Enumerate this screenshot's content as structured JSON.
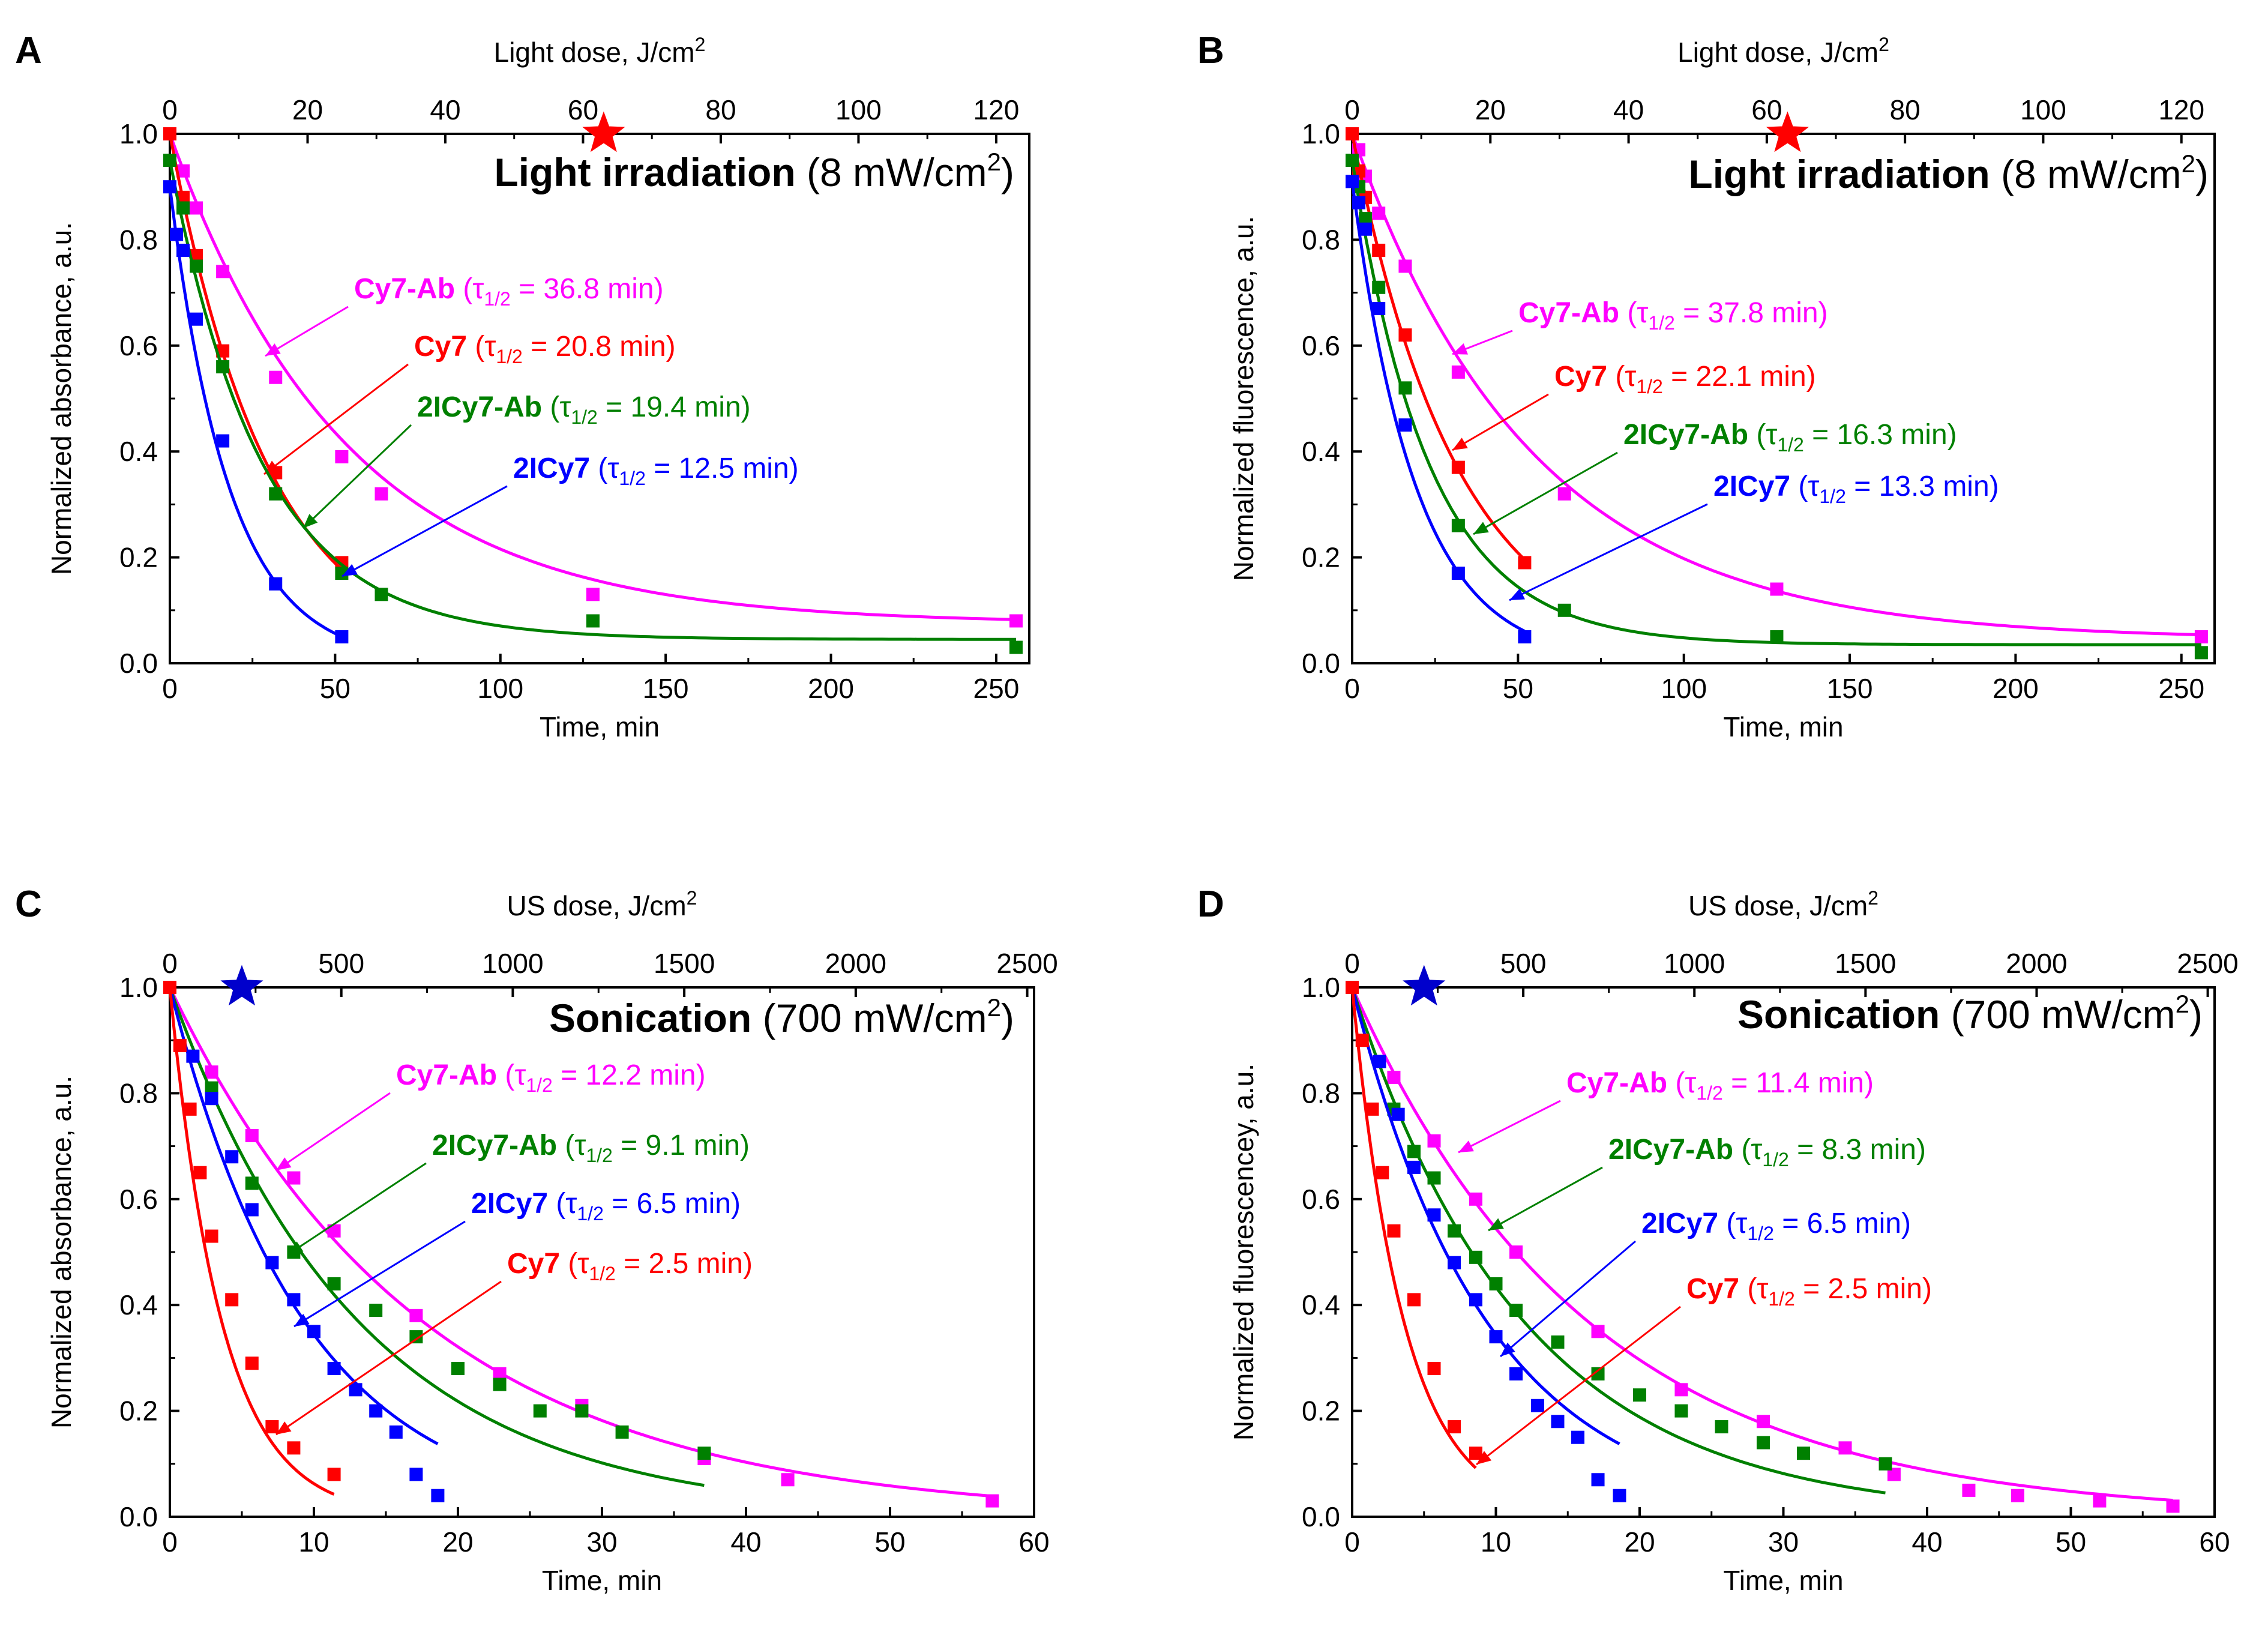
{
  "figure": "Four-panel photobleaching / sonication degradation kinetics",
  "colors": {
    "Cy7-Ab": "#ff00ff",
    "Cy7": "#ff0000",
    "2ICy7-Ab": "#008000",
    "2ICy7": "#0000ff",
    "axis": "#000000"
  },
  "chart_data": [
    {
      "type": "scatter",
      "panel_label": "A",
      "xlabel": "Time, min",
      "ylabel": "Normalized absorbance, a.u.",
      "top_axis_label_main": "Light dose, J/cm",
      "top_axis_label_sup": "2",
      "title_bold": "Light irradiation",
      "title_rest": " (8 mW/cm",
      "title_sup": "2",
      "title_close": ")",
      "xlim": [
        0,
        260
      ],
      "ylim": [
        0,
        1.0
      ],
      "top_xlim": [
        0,
        124.8
      ],
      "xticks": [
        0,
        50,
        100,
        150,
        200,
        250
      ],
      "xtick_labels": [
        "0",
        "50",
        "100",
        "150",
        "200",
        "250"
      ],
      "yticks": [
        0,
        0.2,
        0.4,
        0.6,
        0.8,
        1.0
      ],
      "ytick_labels": [
        "0.0",
        "0.2",
        "0.4",
        "0.6",
        "0.8",
        "1.0"
      ],
      "top_ticks": [
        0,
        20,
        40,
        60,
        80,
        100,
        120
      ],
      "top_tick_labels": [
        "0",
        "20",
        "40",
        "60",
        "80",
        "100",
        "120"
      ],
      "star": {
        "x_top": 63,
        "color": "#ff0000"
      },
      "series": [
        {
          "name": "Cy7-Ab",
          "color": "#ff00ff",
          "tau_text": " = 36.8 min)",
          "x": [
            0,
            4,
            8,
            16,
            32,
            52,
            64,
            128,
            256
          ],
          "y": [
            1.0,
            0.93,
            0.86,
            0.74,
            0.54,
            0.39,
            0.32,
            0.13,
            0.08
          ],
          "fit": {
            "tau": 36.8,
            "plateau": 0.075,
            "tmax": 256
          }
        },
        {
          "name": "Cy7",
          "color": "#ff0000",
          "tau_text": " = 20.8 min)",
          "x": [
            0,
            4,
            8,
            16,
            32,
            52
          ],
          "y": [
            1.0,
            0.88,
            0.77,
            0.59,
            0.36,
            0.19
          ],
          "fit": {
            "tau": 20.8,
            "plateau": 0.0,
            "tmax": 52
          }
        },
        {
          "name": "2ICy7-Ab",
          "color": "#008000",
          "tau_text": " = 19.4 min)",
          "x": [
            0,
            4,
            8,
            16,
            32,
            52,
            64,
            128,
            256
          ],
          "y": [
            0.95,
            0.86,
            0.75,
            0.56,
            0.32,
            0.17,
            0.13,
            0.08,
            0.03
          ],
          "fit": {
            "tau": 19.4,
            "plateau": 0.045,
            "tmax": 256
          }
        },
        {
          "name": "2ICy7",
          "color": "#0000ff",
          "tau_text": " = 12.5 min)",
          "x": [
            0,
            2,
            4,
            8,
            16,
            32,
            52
          ],
          "y": [
            0.9,
            0.81,
            0.78,
            0.65,
            0.42,
            0.15,
            0.05
          ],
          "fit": {
            "tau": 12.5,
            "plateau": 0.0,
            "tmax": 52
          }
        }
      ]
    },
    {
      "type": "scatter",
      "panel_label": "B",
      "xlabel": "Time, min",
      "ylabel": "Normalized fluorescence, a.u.",
      "top_axis_label_main": "Light dose, J/cm",
      "top_axis_label_sup": "2",
      "title_bold": "Light irradiation",
      "title_rest": " (8 mW/cm",
      "title_sup": "2",
      "title_close": ")",
      "xlim": [
        0,
        260
      ],
      "ylim": [
        0,
        1.0
      ],
      "top_xlim": [
        0,
        124.8
      ],
      "xticks": [
        0,
        50,
        100,
        150,
        200,
        250
      ],
      "xtick_labels": [
        "0",
        "50",
        "100",
        "150",
        "200",
        "250"
      ],
      "yticks": [
        0,
        0.2,
        0.4,
        0.6,
        0.8,
        1.0
      ],
      "ytick_labels": [
        "0.0",
        "0.2",
        "0.4",
        "0.6",
        "0.8",
        "1.0"
      ],
      "top_ticks": [
        0,
        20,
        40,
        60,
        80,
        100,
        120
      ],
      "top_tick_labels": [
        "0",
        "20",
        "40",
        "60",
        "80",
        "100",
        "120"
      ],
      "star": {
        "x_top": 63,
        "color": "#ff0000"
      },
      "series": [
        {
          "name": "Cy7-Ab",
          "color": "#ff00ff",
          "tau_text": " = 37.8 min)",
          "x": [
            0,
            2,
            4,
            8,
            16,
            32,
            64,
            128,
            256
          ],
          "y": [
            1.0,
            0.97,
            0.92,
            0.85,
            0.75,
            0.55,
            0.32,
            0.14,
            0.05
          ],
          "fit": {
            "tau": 37.8,
            "plateau": 0.045,
            "tmax": 256
          }
        },
        {
          "name": "Cy7",
          "color": "#ff0000",
          "tau_text": " = 22.1 min)",
          "x": [
            0,
            2,
            4,
            8,
            16,
            32,
            52
          ],
          "y": [
            1.0,
            0.93,
            0.88,
            0.78,
            0.62,
            0.37,
            0.19
          ],
          "fit": {
            "tau": 22.1,
            "plateau": 0.0,
            "tmax": 52
          }
        },
        {
          "name": "2ICy7-Ab",
          "color": "#008000",
          "tau_text": " = 16.3 min)",
          "x": [
            0,
            2,
            4,
            8,
            16,
            32,
            64,
            128,
            256
          ],
          "y": [
            0.95,
            0.9,
            0.84,
            0.71,
            0.52,
            0.26,
            0.1,
            0.05,
            0.02
          ],
          "fit": {
            "tau": 16.3,
            "plateau": 0.035,
            "tmax": 256
          }
        },
        {
          "name": "2ICy7",
          "color": "#0000ff",
          "tau_text": " = 13.3 min)",
          "x": [
            0,
            2,
            4,
            8,
            16,
            32,
            52
          ],
          "y": [
            0.91,
            0.87,
            0.82,
            0.67,
            0.45,
            0.17,
            0.05
          ],
          "fit": {
            "tau": 13.3,
            "plateau": 0.0,
            "tmax": 52
          }
        }
      ]
    },
    {
      "type": "scatter",
      "panel_label": "C",
      "xlabel": "Time, min",
      "ylabel": "Normalized absorbance, a.u.",
      "top_axis_label_main": "US dose, J/cm",
      "top_axis_label_sup": "2",
      "title_bold": "Sonication",
      "title_rest": " (700 mW/cm",
      "title_sup": "2",
      "title_close": ")",
      "xlim": [
        0,
        60
      ],
      "ylim": [
        0,
        1.0
      ],
      "top_xlim": [
        0,
        2520
      ],
      "xticks": [
        0,
        10,
        20,
        30,
        40,
        50,
        60
      ],
      "xtick_labels": [
        "0",
        "10",
        "20",
        "30",
        "40",
        "50",
        "60"
      ],
      "yticks": [
        0,
        0.2,
        0.4,
        0.6,
        0.8,
        1.0
      ],
      "ytick_labels": [
        "0.0",
        "0.2",
        "0.4",
        "0.6",
        "0.8",
        "1.0"
      ],
      "top_ticks": [
        0,
        500,
        1000,
        1500,
        2000,
        2500
      ],
      "top_tick_labels": [
        "0",
        "500",
        "1000",
        "1500",
        "2000",
        "2500"
      ],
      "star": {
        "x_top": 210,
        "color": "#0000cc"
      },
      "series": [
        {
          "name": "Cy7-Ab",
          "color": "#ff00ff",
          "tau_text": " = 12.2 min)",
          "x": [
            0,
            2.9,
            5.7,
            8.6,
            11.4,
            17.1,
            22.9,
            28.6,
            37.1,
            42.9,
            57.1
          ],
          "y": [
            1.0,
            0.84,
            0.72,
            0.64,
            0.54,
            0.38,
            0.27,
            0.21,
            0.11,
            0.07,
            0.03
          ],
          "fit": {
            "tau": 12.2,
            "plateau": 0.0,
            "tmax": 57.1
          }
        },
        {
          "name": "2ICy7-Ab",
          "color": "#008000",
          "tau_text": " = 9.1 min)",
          "x": [
            0,
            2.9,
            5.7,
            8.6,
            11.4,
            14.3,
            17.1,
            20.0,
            22.9,
            25.7,
            28.6,
            31.4,
            37.1
          ],
          "y": [
            1.0,
            0.81,
            0.63,
            0.5,
            0.44,
            0.39,
            0.34,
            0.28,
            0.25,
            0.2,
            0.2,
            0.16,
            0.12
          ],
          "fit": {
            "tau": 9.1,
            "plateau": 0.0,
            "tmax": 37.1
          }
        },
        {
          "name": "2ICy7",
          "color": "#0000ff",
          "tau_text": " = 6.5 min)",
          "x": [
            0,
            1.6,
            2.9,
            4.3,
            5.7,
            7.1,
            8.6,
            10.0,
            11.4,
            12.9,
            14.3,
            15.7,
            17.1,
            18.6
          ],
          "y": [
            1.0,
            0.87,
            0.79,
            0.68,
            0.58,
            0.48,
            0.41,
            0.35,
            0.28,
            0.24,
            0.2,
            0.16,
            0.08,
            0.04
          ],
          "fit": {
            "tau": 6.5,
            "plateau": 0.0,
            "tmax": 18.6
          }
        },
        {
          "name": "Cy7",
          "color": "#ff0000",
          "tau_text": " = 2.5 min)",
          "x": [
            0,
            0.7,
            1.4,
            2.1,
            2.9,
            4.3,
            5.7,
            7.1,
            8.6,
            11.4
          ],
          "y": [
            1.0,
            0.89,
            0.77,
            0.65,
            0.53,
            0.41,
            0.29,
            0.17,
            0.13,
            0.08
          ],
          "fit": {
            "tau": 2.5,
            "plateau": 0.0,
            "tmax": 11.4
          }
        }
      ]
    },
    {
      "type": "scatter",
      "panel_label": "D",
      "xlabel": "Time, min",
      "ylabel": "Normalized fluorescencey, a.u.",
      "top_axis_label_main": "US dose, J/cm",
      "top_axis_label_sup": "2",
      "title_bold": "Sonication",
      "title_rest": " (700 mW/cm",
      "title_sup": "2",
      "title_close": ")",
      "xlim": [
        0,
        60
      ],
      "ylim": [
        0,
        1.0
      ],
      "top_xlim": [
        0,
        2520
      ],
      "xticks": [
        0,
        10,
        20,
        30,
        40,
        50,
        60
      ],
      "xtick_labels": [
        "0",
        "10",
        "20",
        "30",
        "40",
        "50",
        "60"
      ],
      "yticks": [
        0,
        0.2,
        0.4,
        0.6,
        0.8,
        1.0
      ],
      "ytick_labels": [
        "0.0",
        "0.2",
        "0.4",
        "0.6",
        "0.8",
        "1.0"
      ],
      "top_ticks": [
        0,
        500,
        1000,
        1500,
        2000,
        2500
      ],
      "top_tick_labels": [
        "0",
        "500",
        "1000",
        "1500",
        "2000",
        "2500"
      ],
      "star": {
        "x_top": 210,
        "color": "#0000cc"
      },
      "series": [
        {
          "name": "Cy7-Ab",
          "color": "#ff00ff",
          "tau_text": " = 11.4 min)",
          "x": [
            0,
            2.9,
            5.7,
            8.6,
            11.4,
            17.1,
            22.9,
            28.6,
            34.3,
            37.7,
            42.9,
            46.3,
            52.0,
            57.1
          ],
          "y": [
            1.0,
            0.83,
            0.71,
            0.6,
            0.5,
            0.35,
            0.24,
            0.18,
            0.13,
            0.08,
            0.05,
            0.04,
            0.03,
            0.02
          ],
          "fit": {
            "tau": 11.4,
            "plateau": 0.0,
            "tmax": 57.1
          }
        },
        {
          "name": "2ICy7-Ab",
          "color": "#008000",
          "tau_text": " = 8.3 min)",
          "x": [
            0,
            2.9,
            4.3,
            5.7,
            7.1,
            8.6,
            10.0,
            11.4,
            14.3,
            17.1,
            20.0,
            22.9,
            25.7,
            28.6,
            31.4,
            37.1
          ],
          "y": [
            1.0,
            0.77,
            0.69,
            0.64,
            0.54,
            0.49,
            0.44,
            0.39,
            0.33,
            0.27,
            0.23,
            0.2,
            0.17,
            0.14,
            0.12,
            0.1
          ],
          "fit": {
            "tau": 8.3,
            "plateau": 0.0,
            "tmax": 37.1
          }
        },
        {
          "name": "2ICy7",
          "color": "#0000ff",
          "tau_text": " = 6.5 min)",
          "x": [
            0,
            1.9,
            3.2,
            4.3,
            5.7,
            7.1,
            8.6,
            10.0,
            11.4,
            12.9,
            14.3,
            15.7,
            17.1,
            18.6
          ],
          "y": [
            1.0,
            0.86,
            0.76,
            0.66,
            0.57,
            0.48,
            0.41,
            0.34,
            0.27,
            0.21,
            0.18,
            0.15,
            0.07,
            0.04
          ],
          "fit": {
            "tau": 6.5,
            "plateau": 0.0,
            "tmax": 18.6
          }
        },
        {
          "name": "Cy7",
          "color": "#ff0000",
          "tau_text": " = 2.5 min)",
          "x": [
            0,
            0.7,
            1.4,
            2.1,
            2.9,
            4.3,
            5.7,
            7.1,
            8.6
          ],
          "y": [
            1.0,
            0.9,
            0.77,
            0.65,
            0.54,
            0.41,
            0.28,
            0.17,
            0.12
          ],
          "fit": {
            "tau": 2.5,
            "plateau": 0.0,
            "tmax": 8.6
          }
        }
      ]
    }
  ]
}
